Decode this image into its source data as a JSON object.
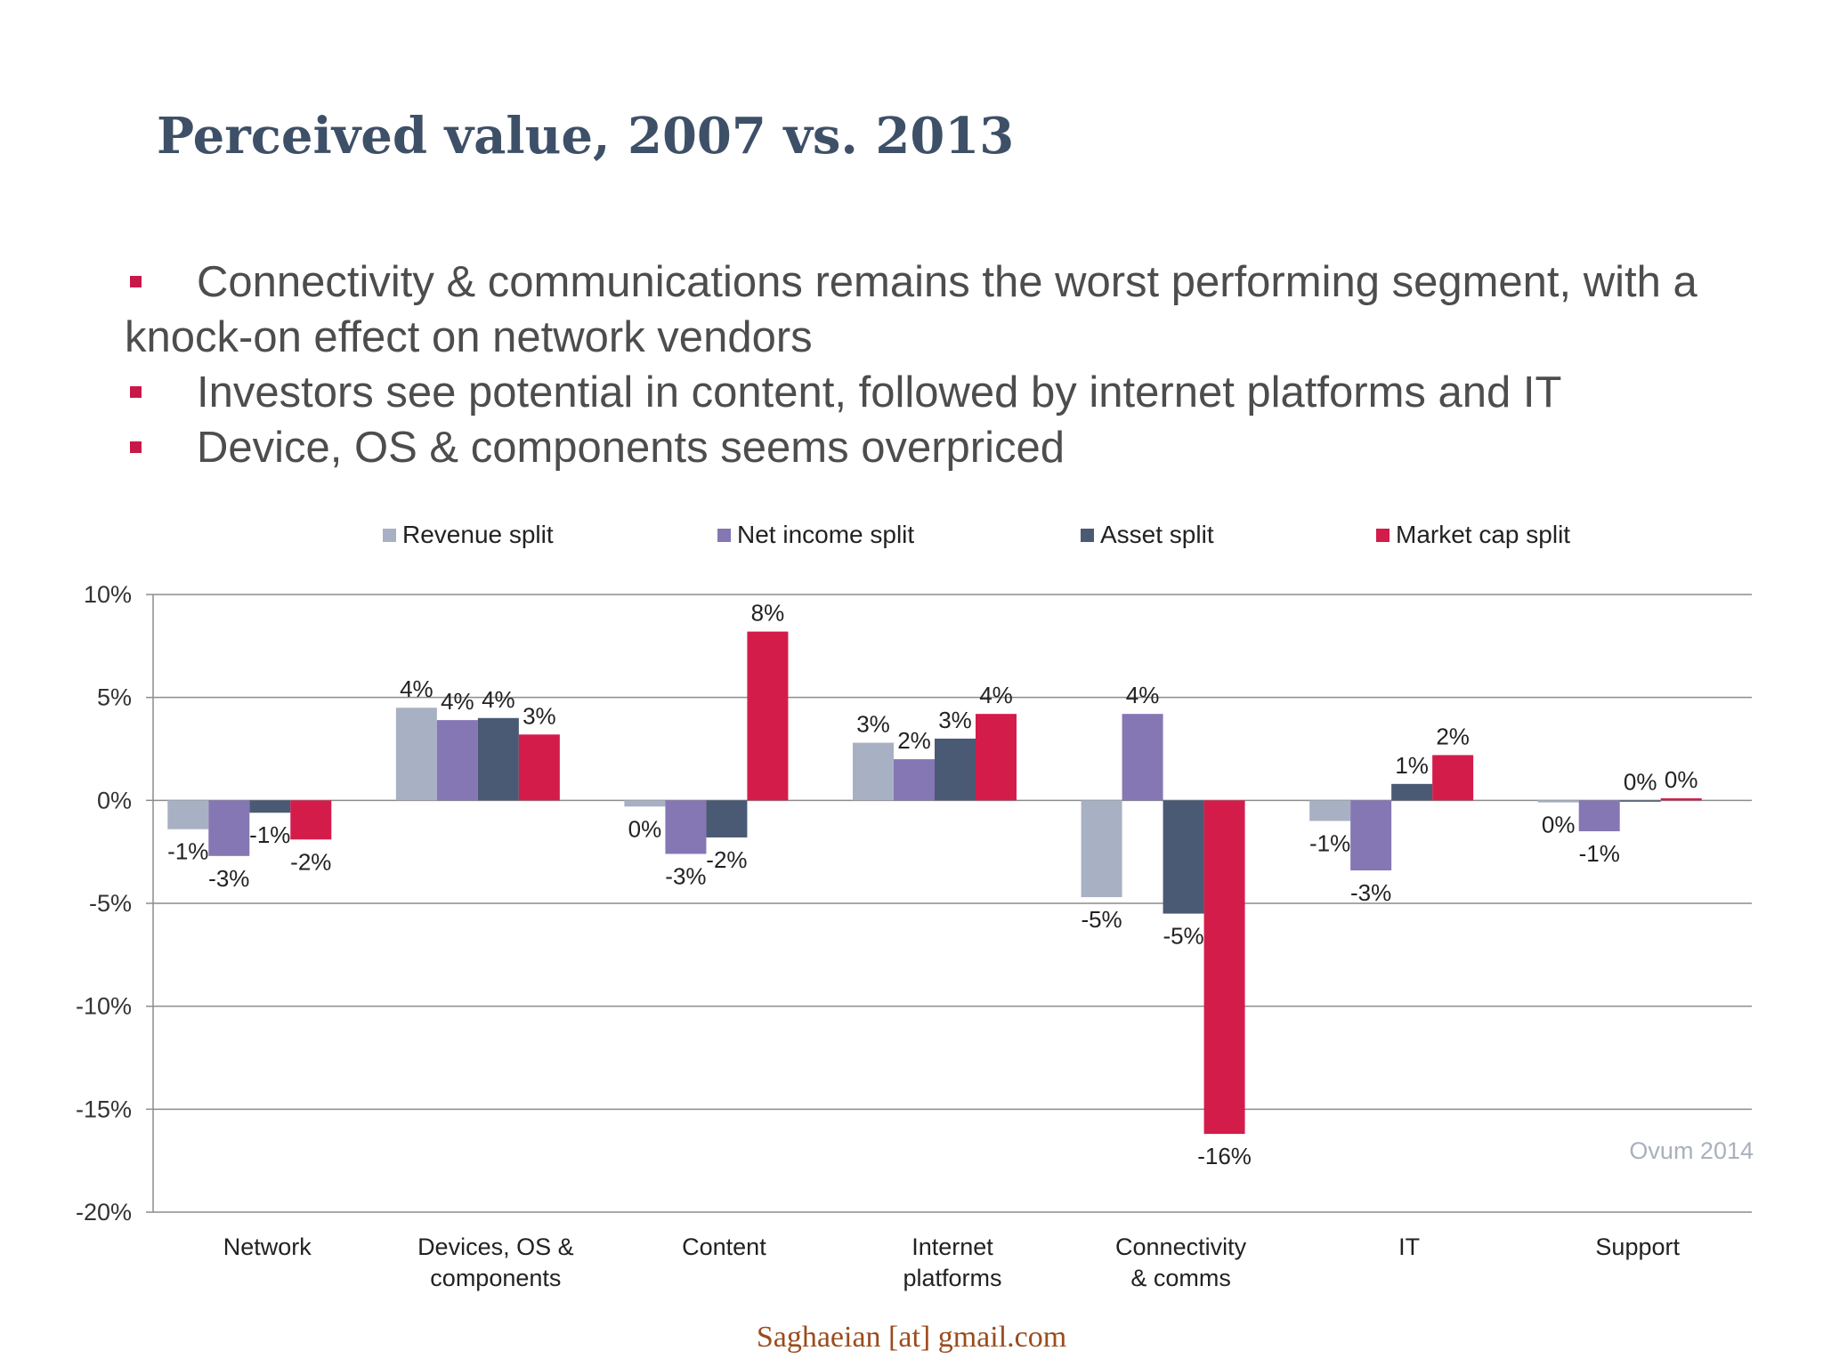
{
  "slide": {
    "title": "Perceived value, 2007 vs. 2013",
    "bullets": [
      "Connectivity & communications remains the worst performing segment, with a knock-on effect on network vendors",
      "Investors see potential in content, followed by internet platforms and IT",
      "Device, OS & components seems overpriced"
    ],
    "watermark": "Ovum 2014",
    "footer": "Saghaeian [at] gmail.com"
  },
  "colors": {
    "title": "#3e5068",
    "bullet_marker": "#c8184a",
    "revenue": "#a8b1c3",
    "net_income": "#8577b3",
    "asset": "#4a5a74",
    "market_cap": "#d41c4b"
  },
  "chart_data": {
    "type": "bar",
    "categories": [
      "Network",
      "Devices, OS & components",
      "Content",
      "Internet platforms",
      "Connectivity & comms",
      "IT",
      "Support"
    ],
    "category_lines": [
      [
        "Network"
      ],
      [
        "Devices, OS &",
        "components"
      ],
      [
        "Content"
      ],
      [
        "Internet",
        "platforms"
      ],
      [
        "Connectivity",
        "& comms"
      ],
      [
        "IT"
      ],
      [
        "Support"
      ]
    ],
    "series": [
      {
        "name": "Revenue split",
        "color": "#a8b1c3",
        "values": [
          -1.4,
          4.5,
          -0.3,
          2.8,
          -4.7,
          -1.0,
          -0.1
        ],
        "labels": [
          "-1%",
          "4%",
          "0%",
          "3%",
          "-5%",
          "-1%",
          "0%"
        ]
      },
      {
        "name": "Net income split",
        "color": "#8577b3",
        "values": [
          -2.7,
          3.9,
          -2.6,
          2.0,
          4.2,
          -3.4,
          -1.5
        ],
        "labels": [
          "-3%",
          "4%",
          "-3%",
          "2%",
          "4%",
          "-3%",
          "-1%"
        ]
      },
      {
        "name": "Asset split",
        "color": "#4a5a74",
        "values": [
          -0.6,
          4.0,
          -1.8,
          3.0,
          -5.5,
          0.8,
          0.0
        ],
        "labels": [
          "-1%",
          "4%",
          "-2%",
          "3%",
          "-5%",
          "1%",
          "0%"
        ]
      },
      {
        "name": "Market cap split",
        "color": "#d41c4b",
        "values": [
          -1.9,
          3.2,
          8.2,
          4.2,
          -16.2,
          2.2,
          0.1
        ],
        "labels": [
          "-2%",
          "3%",
          "8%",
          "4%",
          "-16%",
          "2%",
          "0%"
        ]
      }
    ],
    "y_ticks": [
      "10%",
      "5%",
      "0%",
      "-5%",
      "-10%",
      "-15%",
      "-20%"
    ],
    "ylim": [
      -20,
      10
    ],
    "grid": true,
    "legend_position": "top"
  }
}
